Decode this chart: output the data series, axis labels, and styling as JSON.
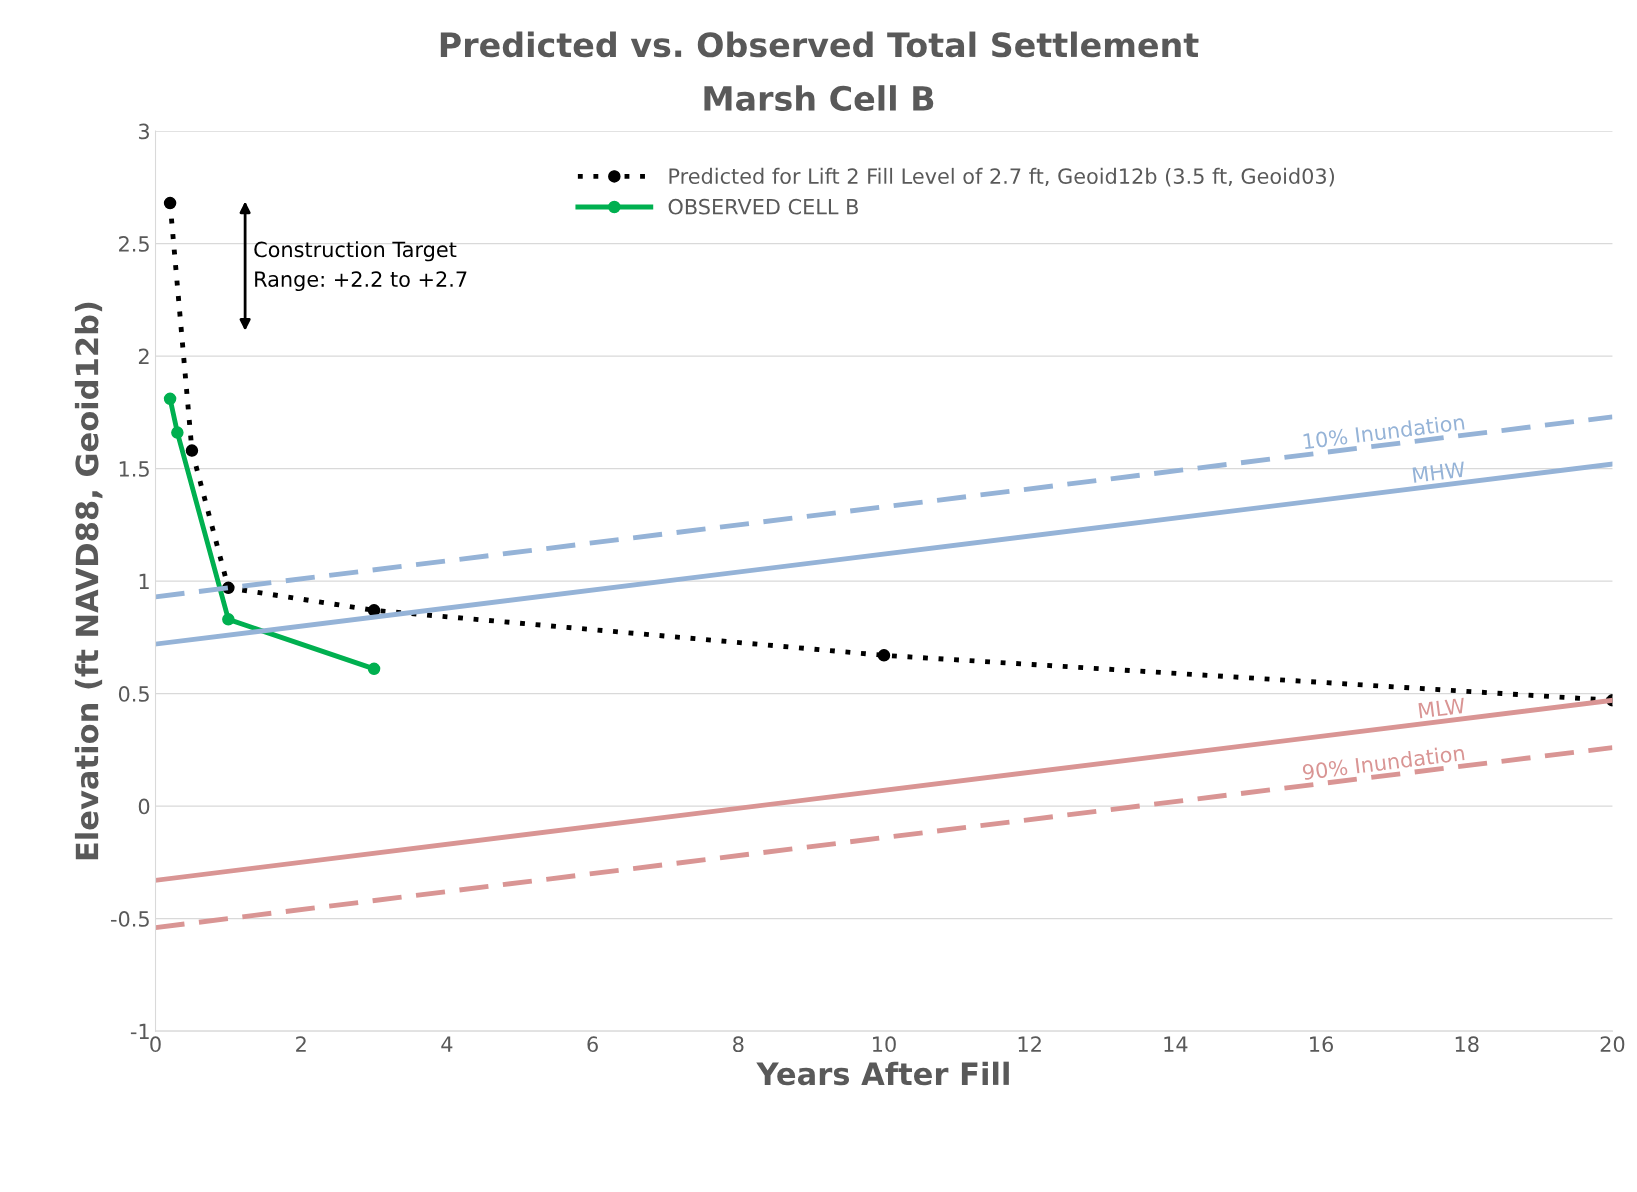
{
  "chart_data": {
    "type": "line",
    "title": "Predicted vs. Observed Total Settlement",
    "subtitle": "Marsh Cell B",
    "xlabel": "Years After Fill",
    "ylabel": "Elevation (ft NAVD88, Geoid12b)",
    "xlim": [
      0,
      20
    ],
    "xticks": [
      0,
      2,
      4,
      6,
      8,
      10,
      12,
      14,
      16,
      18,
      20
    ],
    "ylim": [
      -1,
      3
    ],
    "yticks": [
      -1,
      -0.5,
      0,
      0.5,
      1,
      1.5,
      2,
      2.5,
      3
    ],
    "grid": "y",
    "legend": "top",
    "annotations": [
      "Construction Target\nRange: +2.2 to +2.7"
    ],
    "series": [
      {
        "name": "Predicted for Lift 2 Fill Level of 2.7 ft, Geoid12b (3.5 ft, Geoid03)",
        "color": "#000000",
        "x": [
          0.2,
          0.5,
          1,
          3,
          10,
          20
        ],
        "values": [
          2.68,
          1.58,
          0.97,
          0.87,
          0.67,
          0.47
        ],
        "marker": "circle",
        "line_style": "dotted"
      },
      {
        "name": "OBSERVED CELL B",
        "color": "#00b050",
        "x": [
          0.2,
          0.3,
          1,
          3
        ],
        "values": [
          1.81,
          1.66,
          0.83,
          0.61
        ],
        "marker": "circle",
        "line_style": "solid"
      },
      {
        "name": "10% Inundation",
        "color": "#95b3d7",
        "x": [
          0,
          20
        ],
        "values": [
          0.93,
          1.73
        ],
        "line_style": "dashed"
      },
      {
        "name": "MHW",
        "color": "#95b3d7",
        "x": [
          0,
          20
        ],
        "values": [
          0.72,
          1.52
        ],
        "line_style": "solid"
      },
      {
        "name": "MLW",
        "color": "#d99594",
        "x": [
          0,
          20
        ],
        "values": [
          -0.33,
          0.47
        ],
        "line_style": "solid"
      },
      {
        "name": "90% Inundation",
        "color": "#d99594",
        "x": [
          0,
          20
        ],
        "values": [
          -0.54,
          0.26
        ],
        "line_style": "dashed"
      }
    ]
  }
}
